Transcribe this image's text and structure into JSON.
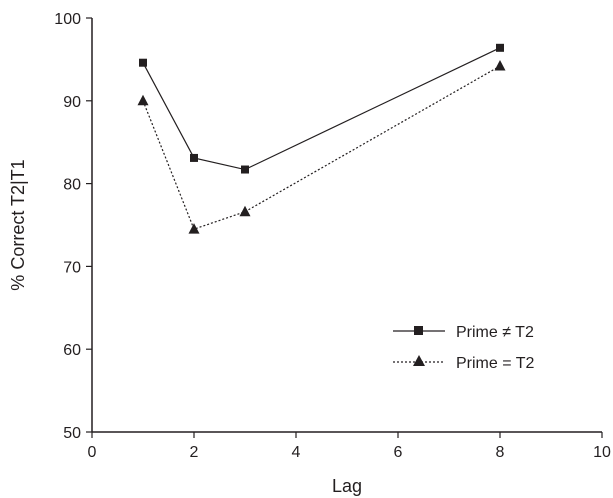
{
  "chart_data": {
    "type": "line",
    "xlabel": "Lag",
    "ylabel": "% Correct T2|T1",
    "xlim": [
      0,
      10
    ],
    "ylim": [
      50,
      100
    ],
    "xticks": [
      "0",
      "2",
      "4",
      "6",
      "8",
      "10"
    ],
    "yticks": [
      "50",
      "60",
      "70",
      "80",
      "90",
      "100"
    ],
    "grid": false,
    "legend_position": "right",
    "series": [
      {
        "name": "Prime ≠ T2",
        "line_style": "solid",
        "marker": "square",
        "color": "#231f20",
        "x": [
          1,
          2,
          3,
          8
        ],
        "y": [
          94.6,
          83.1,
          81.7,
          96.4
        ]
      },
      {
        "name": "Prime = T2",
        "line_style": "dotted",
        "marker": "triangle",
        "color": "#231f20",
        "x": [
          1,
          2,
          3,
          8
        ],
        "y": [
          90.0,
          74.5,
          76.6,
          94.2
        ]
      }
    ]
  }
}
